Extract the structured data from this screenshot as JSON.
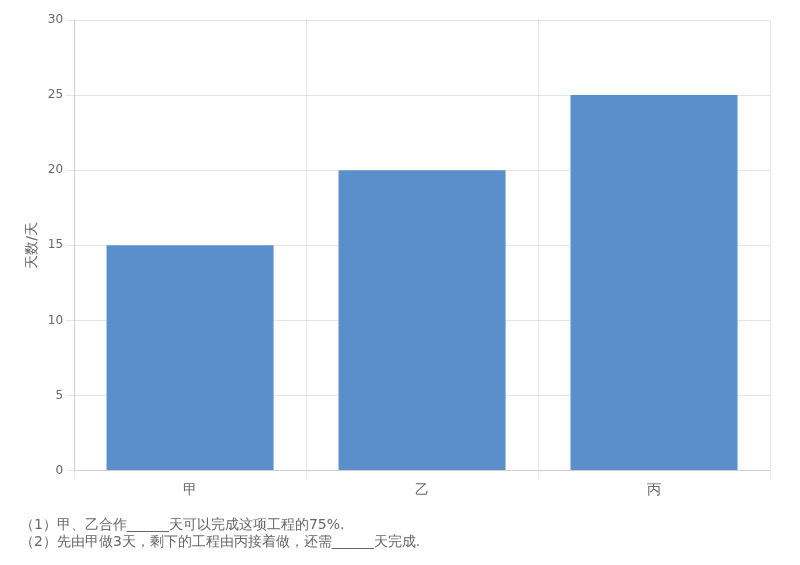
{
  "chart_data": {
    "type": "bar",
    "categories": [
      "甲",
      "乙",
      "丙"
    ],
    "values": [
      15,
      20,
      25
    ],
    "color": "#5b8fcc",
    "y_label": "天数/天",
    "ylim": [
      0,
      30
    ],
    "yticks": [
      0,
      5,
      10,
      15,
      20,
      25,
      30
    ],
    "grid": true,
    "annotations": [
      "（1）甲、乙合作______天可以完成这项工程的75%.",
      "（2）先由甲做3天，剩下的工程由丙接着做，还需______天完成."
    ]
  }
}
